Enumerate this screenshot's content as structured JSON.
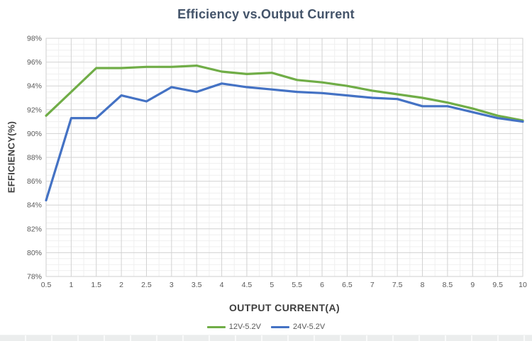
{
  "title": "Efficiency vs.Output Current",
  "colors": {
    "title": "#44546A",
    "axis_title": "#3F3F3F",
    "tick_label": "#595959",
    "grid_major": "#D2D2D2",
    "grid_minor": "#EFEFEF",
    "plot_border": "#CFCFCF",
    "series_green": "#70AD47",
    "series_blue": "#4472C4"
  },
  "chart_data": {
    "type": "line",
    "title": "Efficiency vs.Output Current",
    "xlabel": "OUTPUT CURRENT(A)",
    "ylabel": "EFFICIENCY(%)",
    "x": [
      0.5,
      1,
      1.5,
      2,
      2.5,
      3,
      3.5,
      4,
      4.5,
      5,
      5.5,
      6,
      6.5,
      7,
      7.5,
      8,
      8.5,
      9,
      9.5,
      10
    ],
    "x_tick_labels": [
      "0.5",
      "1",
      "1.5",
      "2",
      "2.5",
      "3",
      "3.5",
      "4",
      "4.5",
      "5",
      "5.5",
      "6",
      "6.5",
      "7",
      "7.5",
      "8",
      "8.5",
      "9",
      "9.5",
      "10"
    ],
    "y_tick_labels": [
      "98%",
      "96%",
      "94%",
      "92%",
      "90%",
      "88%",
      "86%",
      "84%",
      "82%",
      "80%",
      "78%"
    ],
    "ylim": [
      78,
      98
    ],
    "xlim": [
      0.5,
      10
    ],
    "y_major_step": 2,
    "y_minor_step": 0.5,
    "x_major_step": 0.5,
    "x_minor_step": 0.25,
    "grid": "major+minor",
    "legend_position": "bottom",
    "series": [
      {
        "name": "12V-5.2V",
        "color": "#70AD47",
        "values": [
          91.5,
          93.5,
          95.5,
          95.5,
          95.6,
          95.6,
          95.7,
          95.2,
          95.0,
          95.1,
          94.5,
          94.3,
          94.0,
          93.6,
          93.3,
          93.0,
          92.6,
          92.1,
          91.5,
          91.1
        ]
      },
      {
        "name": "24V-5.2V",
        "color": "#4472C4",
        "values": [
          84.4,
          91.3,
          91.3,
          93.2,
          92.7,
          93.9,
          93.5,
          94.2,
          93.9,
          93.7,
          93.5,
          93.4,
          93.2,
          93.0,
          92.9,
          92.3,
          92.3,
          91.8,
          91.3,
          91.0
        ]
      }
    ]
  }
}
